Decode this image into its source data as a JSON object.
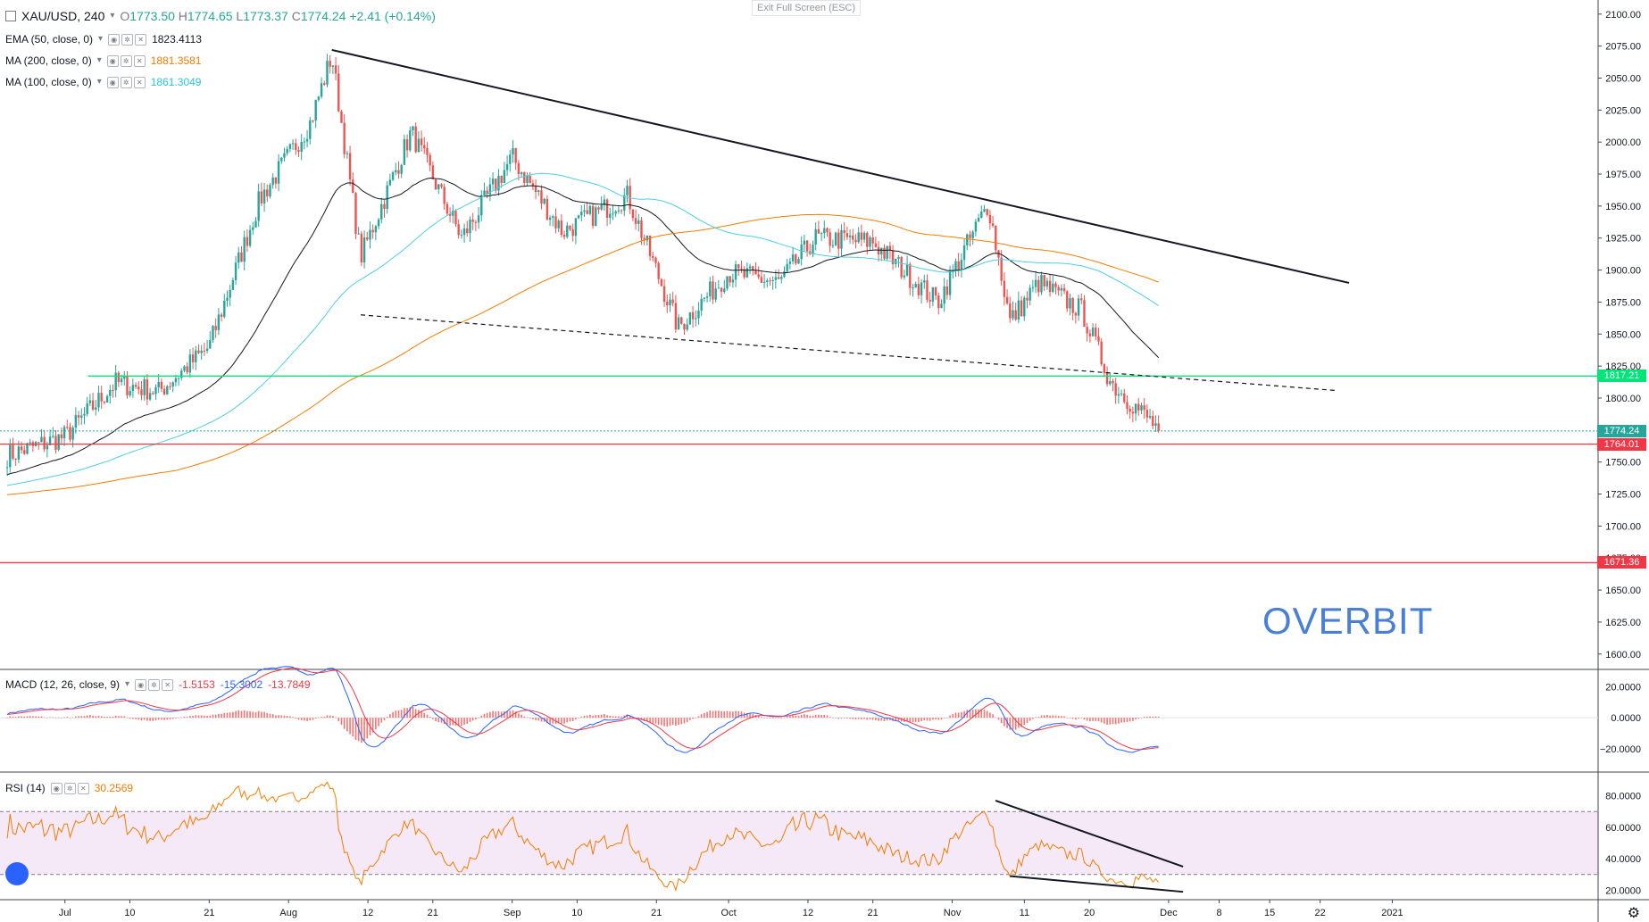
{
  "header": {
    "symbol": "XAU/USD, 240",
    "o_label": "O",
    "o": "1773.50",
    "h_label": "H",
    "h": "1774.65",
    "l_label": "L",
    "l": "1773.37",
    "c_label": "C",
    "c": "1774.24",
    "change": "+2.41 (+0.14%)",
    "exit_fullscreen": "Exit Full Screen (ESC)"
  },
  "indicators": {
    "ema50": {
      "label": "EMA (50, close, 0)",
      "value": "1823.4113",
      "color": "#131722"
    },
    "ma200": {
      "label": "MA (200, close, 0)",
      "value": "1881.3581",
      "color": "#f57c00"
    },
    "ma100": {
      "label": "MA (100, close, 0)",
      "value": "1861.3049",
      "color": "#4dd0e1"
    },
    "macd": {
      "label": "MACD (12, 26, close, 9)",
      "hist": "-1.5153",
      "macd": "-15.3002",
      "signal": "-13.7849"
    },
    "rsi": {
      "label": "RSI (14)",
      "value": "30.2569",
      "color": "#f57c00"
    }
  },
  "watermark": "OVERBIT",
  "price_badges": [
    {
      "value": "1817.21",
      "bg": "#00e676"
    },
    {
      "value": "1774.24",
      "bg": "#26a69a"
    },
    {
      "value": "1764.01",
      "bg": "#f23645"
    },
    {
      "value": "1671.36",
      "bg": "#f23645"
    }
  ],
  "chart_data": [
    {
      "type": "candlestick",
      "title": "XAU/USD, 240",
      "y_ticks": [
        1600,
        1625,
        1650,
        1675,
        1700,
        1725,
        1750,
        1775,
        1800,
        1825,
        1850,
        1875,
        1900,
        1925,
        1950,
        1975,
        2000,
        2025,
        2050,
        2075,
        2100
      ],
      "ylim": [
        1588,
        2111
      ],
      "x_ticks": [
        "Jul",
        "10",
        "21",
        "Aug",
        "12",
        "21",
        "Sep",
        "10",
        "21",
        "Oct",
        "12",
        "21",
        "Nov",
        "11",
        "20",
        "Dec",
        "8",
        "15",
        "22",
        "2021"
      ],
      "price_path": [
        {
          "date": "2020-06-23",
          "close": 1755
        },
        {
          "date": "2020-07-01",
          "close": 1770
        },
        {
          "date": "2020-07-08",
          "close": 1812
        },
        {
          "date": "2020-07-14",
          "close": 1805
        },
        {
          "date": "2020-07-21",
          "close": 1840
        },
        {
          "date": "2020-07-28",
          "close": 1955
        },
        {
          "date": "2020-08-04",
          "close": 2015
        },
        {
          "date": "2020-08-07",
          "close": 2068
        },
        {
          "date": "2020-08-11",
          "close": 1910
        },
        {
          "date": "2020-08-18",
          "close": 2008
        },
        {
          "date": "2020-08-25",
          "close": 1925
        },
        {
          "date": "2020-09-01",
          "close": 1988
        },
        {
          "date": "2020-09-08",
          "close": 1930
        },
        {
          "date": "2020-09-17",
          "close": 1958
        },
        {
          "date": "2020-09-24",
          "close": 1855
        },
        {
          "date": "2020-10-01",
          "close": 1898
        },
        {
          "date": "2020-10-08",
          "close": 1890
        },
        {
          "date": "2020-10-13",
          "close": 1925
        },
        {
          "date": "2020-10-21",
          "close": 1922
        },
        {
          "date": "2020-10-30",
          "close": 1875
        },
        {
          "date": "2020-11-06",
          "close": 1952
        },
        {
          "date": "2020-11-09",
          "close": 1860
        },
        {
          "date": "2020-11-13",
          "close": 1890
        },
        {
          "date": "2020-11-19",
          "close": 1868
        },
        {
          "date": "2020-11-23",
          "close": 1812
        },
        {
          "date": "2020-11-27",
          "close": 1790
        },
        {
          "date": "2020-11-30",
          "close": 1774
        }
      ],
      "series": [
        {
          "name": "EMA (50, close, 0)",
          "last": 1823.4113
        },
        {
          "name": "MA (200, close, 0)",
          "last": 1881.3581
        },
        {
          "name": "MA (100, close, 0)",
          "last": 1861.3049
        }
      ],
      "horizontal_levels": [
        1817.21,
        1774.24,
        1764.01,
        1671.36
      ],
      "trendlines": [
        {
          "style": "solid",
          "from": {
            "date": "2020-08-07",
            "y": 2072
          },
          "to": {
            "date": "2020-12-26",
            "y": 1890
          }
        },
        {
          "style": "dashed",
          "from": {
            "date": "2020-08-11",
            "y": 1865
          },
          "to": {
            "date": "2020-12-24",
            "y": 1806
          }
        }
      ]
    },
    {
      "type": "line",
      "title": "MACD (12, 26, close, 9)",
      "y_ticks": [
        -20,
        0,
        20
      ],
      "ylim": [
        -35,
        30
      ],
      "last": {
        "histogram": -1.5153,
        "macd": -15.3002,
        "signal": -13.7849
      }
    },
    {
      "type": "line",
      "title": "RSI (14)",
      "y_ticks": [
        20,
        40,
        60,
        80
      ],
      "ylim": [
        14,
        94
      ],
      "band": [
        30,
        70
      ],
      "last": 30.2569,
      "trendlines": [
        {
          "from": {
            "date": "2020-11-07",
            "y": 77
          },
          "to": {
            "date": "2020-12-03",
            "y": 35
          }
        },
        {
          "from": {
            "date": "2020-11-09",
            "y": 29
          },
          "to": {
            "date": "2020-12-03",
            "y": 19
          }
        }
      ]
    }
  ]
}
